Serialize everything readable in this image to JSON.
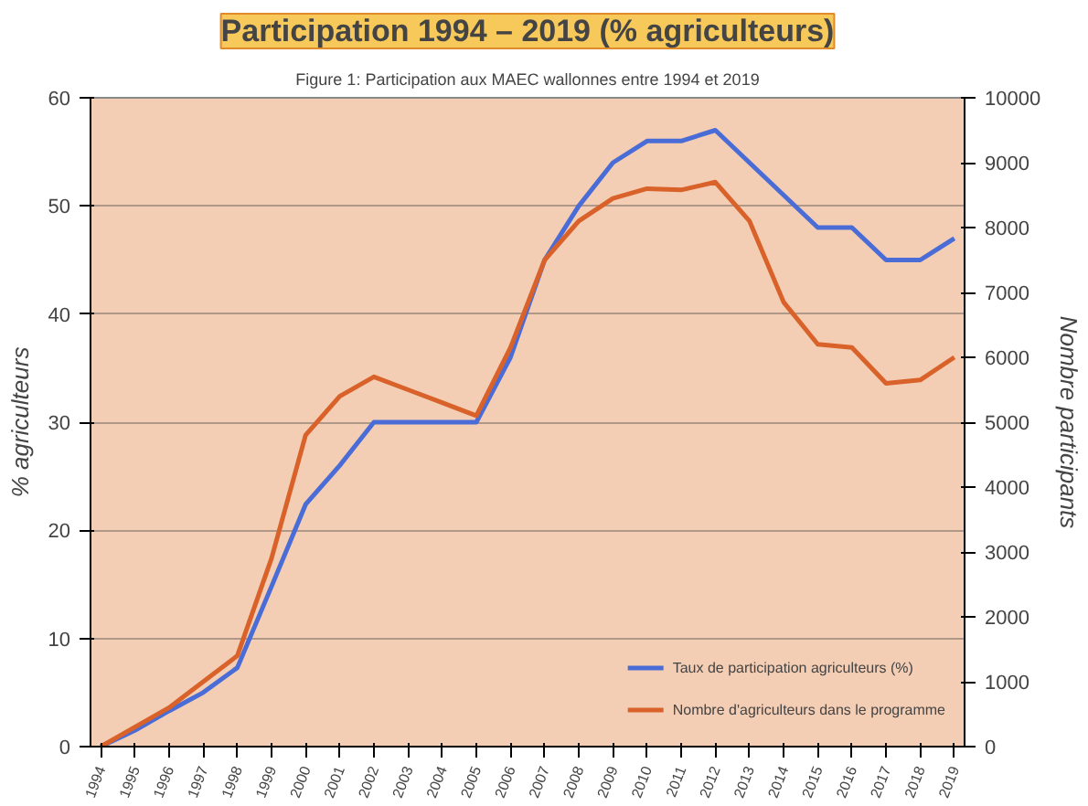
{
  "chart_data": {
    "type": "line",
    "title": "Participation 1994 – 2019 (% agriculteurs)",
    "subtitle": "Figure 1: Participation aux MAEC wallonnes entre 1994 et 2019",
    "ylabel": "% agriculteurs",
    "y2label": "Nombre participants",
    "categories": [
      "1994",
      "1995",
      "1996",
      "1997",
      "1998",
      "1999",
      "2000",
      "2001",
      "2002",
      "2003",
      "2004",
      "2005",
      "2006",
      "2007",
      "2008",
      "2009",
      "2010",
      "2011",
      "2012",
      "2013",
      "2014",
      "2015",
      "2016",
      "2017",
      "2018",
      "2019"
    ],
    "series": [
      {
        "name": "Taux de participation agriculteurs (%)",
        "color": "#4a6cd6",
        "values": [
          0,
          1.5,
          3.3,
          5,
          7.3,
          14.8,
          22.4,
          26,
          30,
          30,
          30,
          30,
          36,
          45,
          50,
          54,
          56,
          56,
          57,
          54,
          51,
          48,
          48,
          45,
          45,
          47
        ]
      },
      {
        "name": "Nombre d'agriculteurs dans le programme",
        "color": "#d9622b",
        "axis": "y2",
        "values": [
          0,
          300,
          600,
          1000,
          1400,
          2900,
          4800,
          5400,
          5700,
          5500,
          5300,
          5100,
          6150,
          7500,
          8100,
          8450,
          8600,
          8580,
          8700,
          8100,
          6850,
          6200,
          6150,
          5600,
          5650,
          6000
        ]
      }
    ],
    "ylim": [
      0,
      60
    ],
    "yticks": [
      0,
      10,
      20,
      30,
      40,
      50,
      60
    ],
    "y2lim": [
      0,
      10000
    ],
    "y2ticks": [
      0,
      1000,
      2000,
      3000,
      4000,
      5000,
      6000,
      7000,
      8000,
      9000,
      10000
    ],
    "grid": "y",
    "legend": "bottom right",
    "marker": "none",
    "line_style": "solid"
  }
}
